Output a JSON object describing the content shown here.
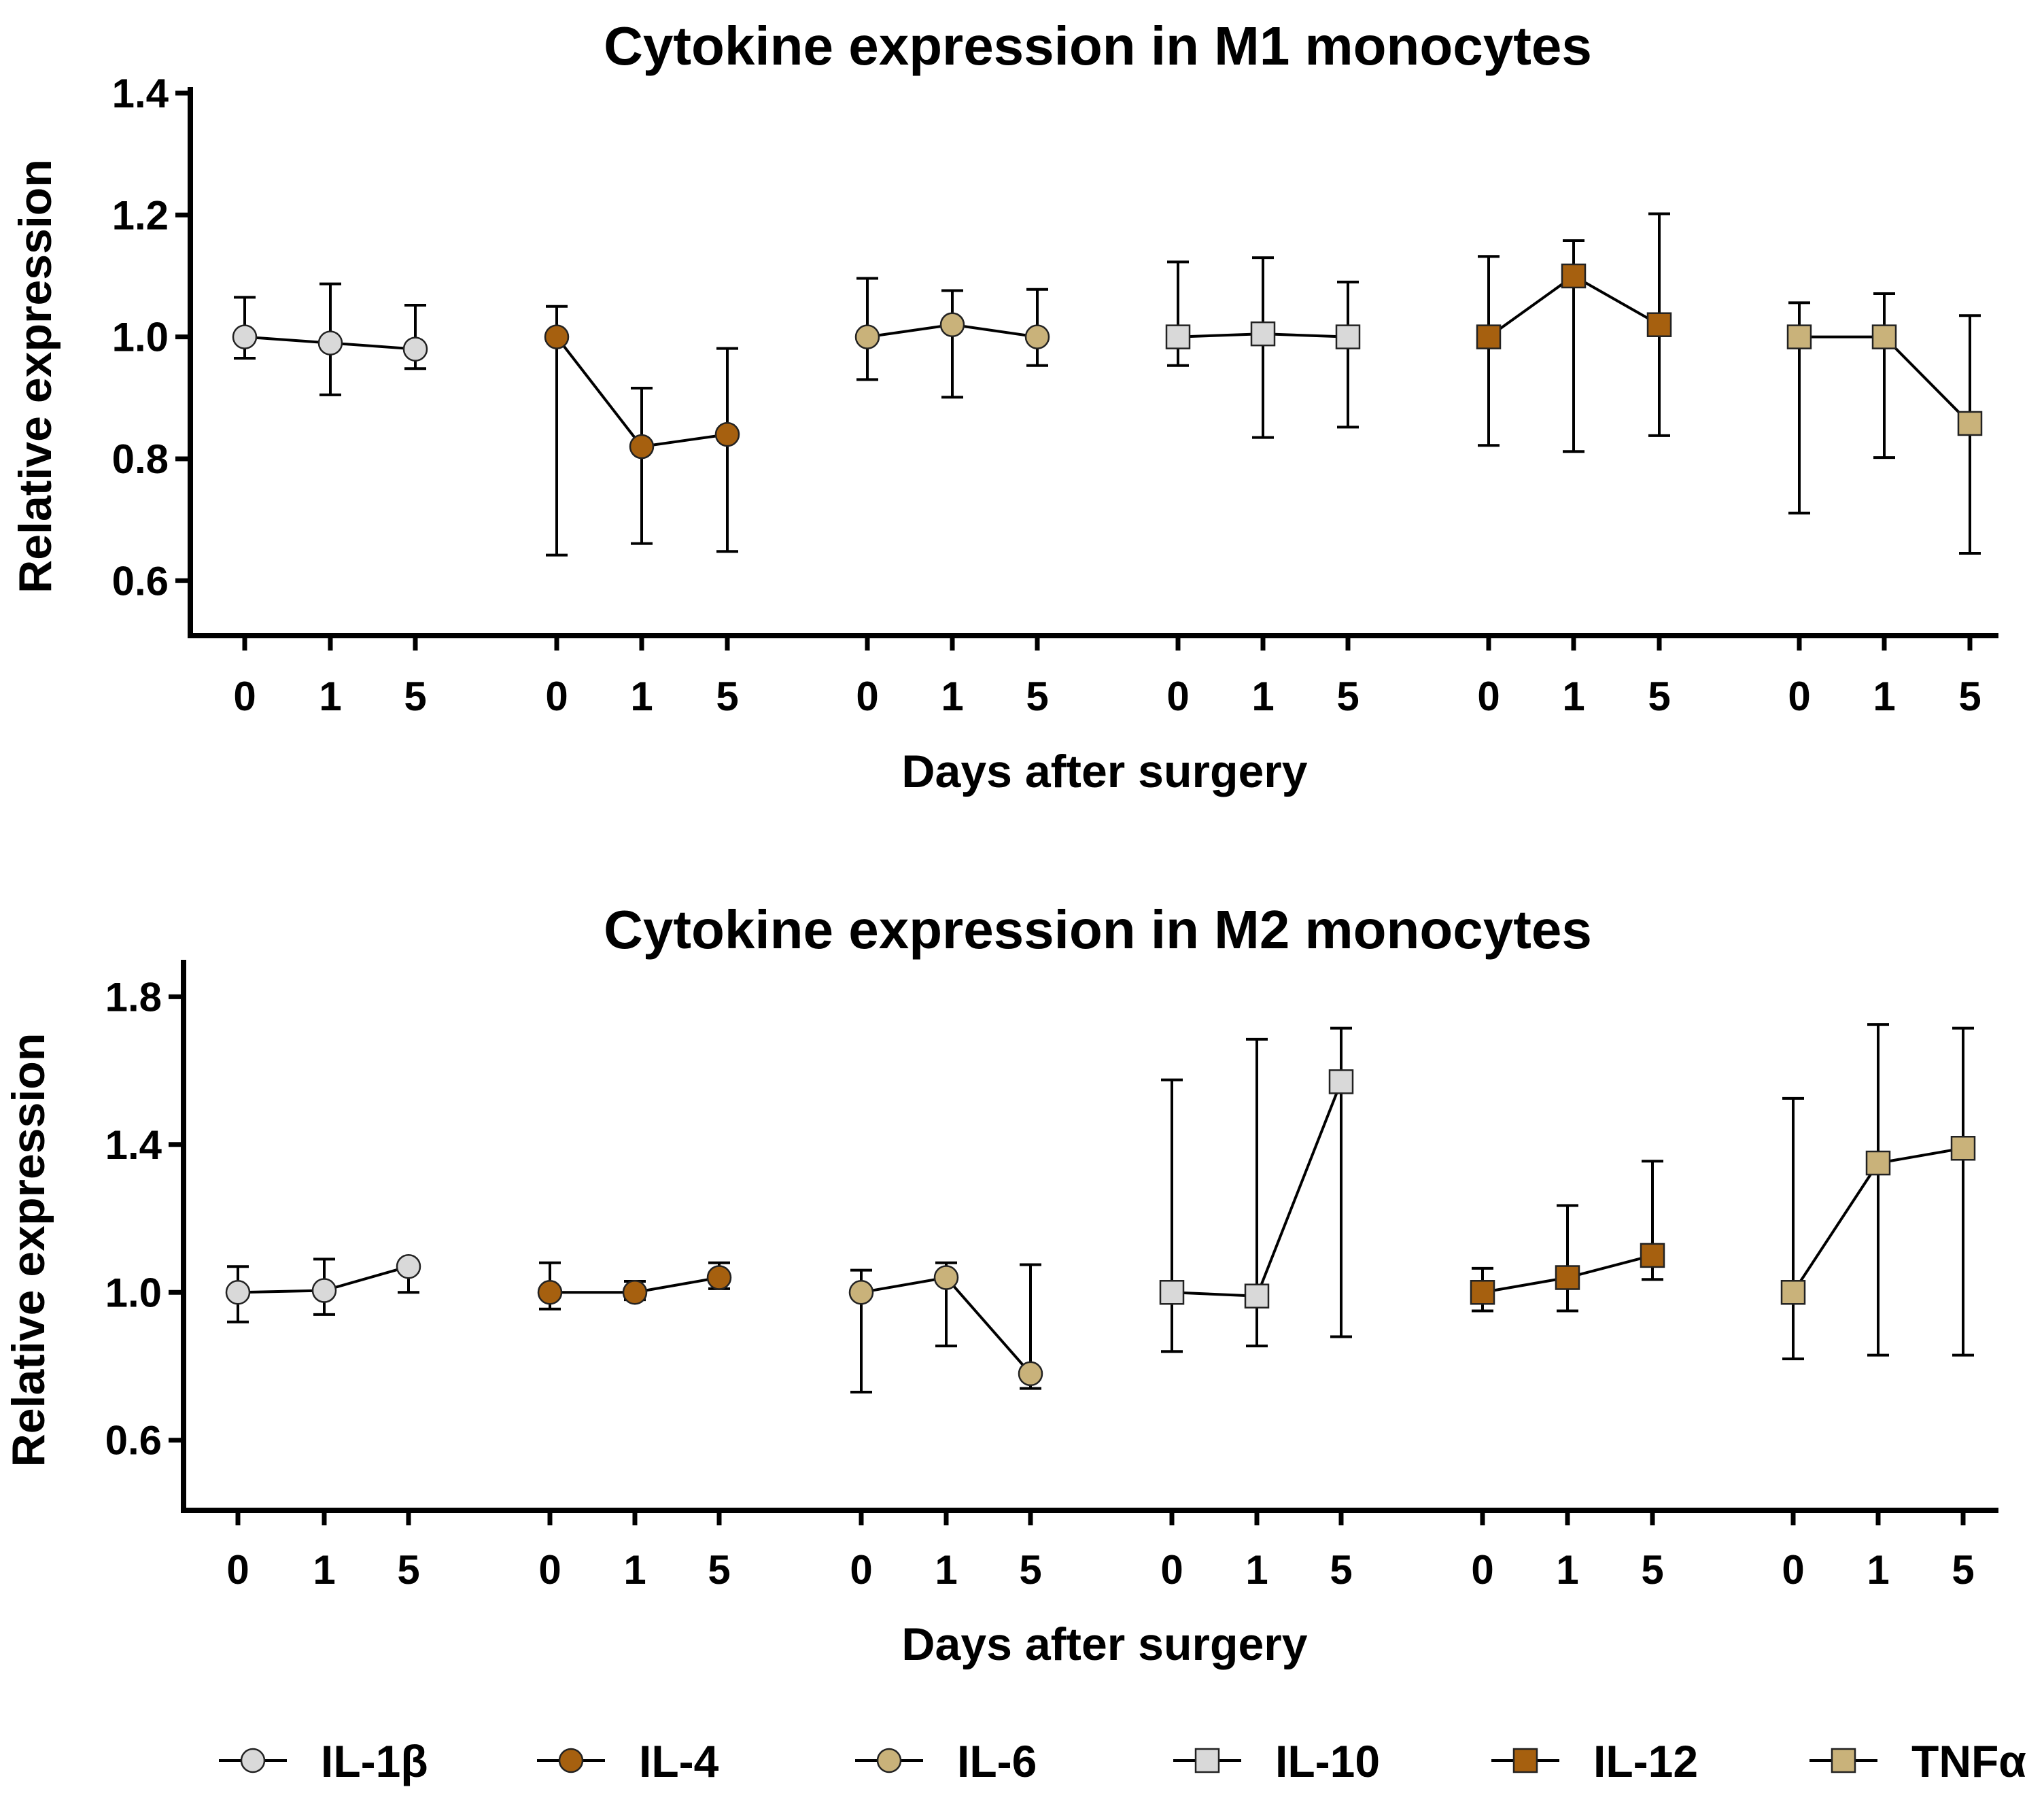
{
  "colors": {
    "IL-1β": "#d9d9d9",
    "IL-4": "#a6600f",
    "IL-6": "#c9b27a",
    "IL-10": "#d9d9d9",
    "IL-12": "#a6600f",
    "TNFα": "#c9b27a",
    "line": "#000000"
  },
  "chart_data": [
    {
      "type": "line",
      "title": "Cytokine expression in M1 monocytes",
      "xlabel": "Days after surgery",
      "ylabel": "Relative expression",
      "ylim": [
        0.51,
        1.41
      ],
      "yticks": [
        "0.6",
        "0.8",
        "1.0",
        "1.2",
        "1.4"
      ],
      "categories": [
        "0",
        "1",
        "5"
      ],
      "series": [
        {
          "name": "IL-1β",
          "marker": "circle",
          "values": [
            1.0,
            0.99,
            0.98
          ],
          "err_low": [
            0.965,
            0.905,
            0.948
          ],
          "err_high": [
            1.065,
            1.087,
            1.052
          ]
        },
        {
          "name": "IL-4",
          "marker": "circle",
          "values": [
            1.0,
            0.82,
            0.84
          ],
          "err_low": [
            0.642,
            0.661,
            0.648
          ],
          "err_high": [
            1.05,
            0.916,
            0.981
          ]
        },
        {
          "name": "IL-6",
          "marker": "circle",
          "values": [
            1.0,
            1.02,
            1.0
          ],
          "err_low": [
            0.93,
            0.901,
            0.953
          ],
          "err_high": [
            1.096,
            1.076,
            1.078
          ]
        },
        {
          "name": "IL-10",
          "marker": "square",
          "values": [
            1.0,
            1.005,
            1.0
          ],
          "err_low": [
            0.953,
            0.835,
            0.852
          ],
          "err_high": [
            1.123,
            1.13,
            1.09
          ]
        },
        {
          "name": "IL-12",
          "marker": "square",
          "values": [
            1.0,
            1.1,
            1.02
          ],
          "err_low": [
            0.822,
            0.812,
            0.838
          ],
          "err_high": [
            1.132,
            1.158,
            1.202
          ]
        },
        {
          "name": "TNFα",
          "marker": "square",
          "values": [
            1.0,
            1.0,
            0.858
          ],
          "err_low": [
            0.711,
            0.802,
            0.645
          ],
          "err_high": [
            1.056,
            1.071,
            1.035
          ]
        }
      ]
    },
    {
      "type": "line",
      "title": "Cytokine expression in M2 monocytes",
      "xlabel": "Days after surgery",
      "ylabel": "Relative expression",
      "ylim": [
        0.41,
        1.9
      ],
      "yticks": [
        "0.6",
        "1.0",
        "1.4",
        "1.8"
      ],
      "categories": [
        "0",
        "1",
        "5"
      ],
      "series": [
        {
          "name": "IL-1β",
          "marker": "circle",
          "values": [
            1.0,
            1.005,
            1.07
          ],
          "err_low": [
            0.92,
            0.94,
            1.0
          ],
          "err_high": [
            1.07,
            1.09,
            1.07
          ]
        },
        {
          "name": "IL-4",
          "marker": "circle",
          "values": [
            1.0,
            1.0,
            1.04
          ],
          "err_low": [
            0.955,
            0.98,
            1.01
          ],
          "err_high": [
            1.08,
            1.03,
            1.08
          ]
        },
        {
          "name": "IL-6",
          "marker": "circle",
          "values": [
            1.0,
            1.04,
            0.78
          ],
          "err_low": [
            0.73,
            0.855,
            0.74
          ],
          "err_high": [
            1.06,
            1.08,
            1.075
          ]
        },
        {
          "name": "IL-10",
          "marker": "square",
          "values": [
            1.0,
            0.99,
            1.57
          ],
          "err_low": [
            0.84,
            0.855,
            0.88
          ],
          "err_high": [
            1.575,
            1.685,
            1.715
          ]
        },
        {
          "name": "IL-12",
          "marker": "square",
          "values": [
            1.0,
            1.04,
            1.1
          ],
          "err_low": [
            0.95,
            0.95,
            1.035
          ],
          "err_high": [
            1.065,
            1.235,
            1.355
          ]
        },
        {
          "name": "TNFα",
          "marker": "square",
          "values": [
            1.0,
            1.35,
            1.39
          ],
          "err_low": [
            0.82,
            0.83,
            0.83
          ],
          "err_high": [
            1.525,
            1.725,
            1.715
          ]
        }
      ]
    }
  ],
  "legend": [
    {
      "name": "IL-1β",
      "marker": "circle"
    },
    {
      "name": "IL-4",
      "marker": "circle"
    },
    {
      "name": "IL-6",
      "marker": "circle"
    },
    {
      "name": "IL-10",
      "marker": "square"
    },
    {
      "name": "IL-12",
      "marker": "square"
    },
    {
      "name": "TNFα",
      "marker": "square"
    }
  ]
}
